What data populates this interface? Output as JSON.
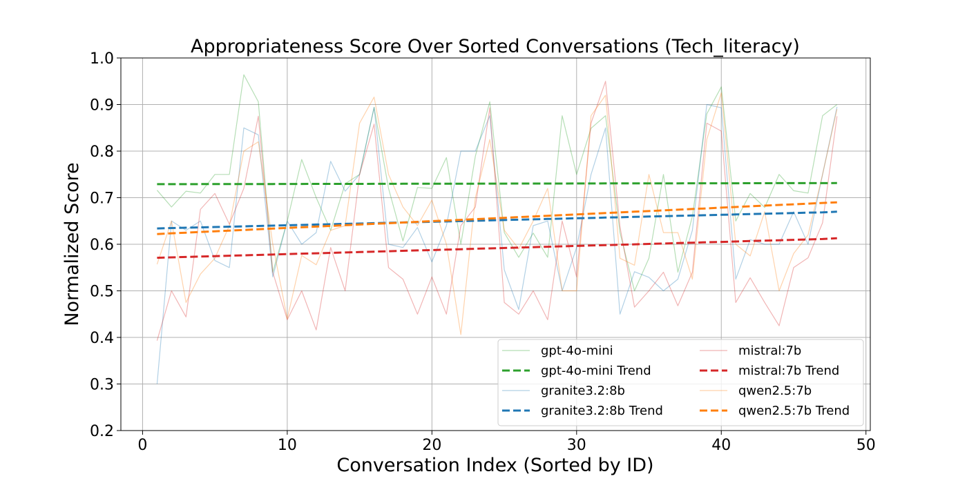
{
  "chart_data": {
    "type": "line",
    "title": "Appropriateness Score Over Sorted Conversations (Tech_literacy)",
    "xlabel": "Conversation Index (Sorted by ID)",
    "ylabel": "Normalized Score",
    "xlim": [
      -1.5,
      50.3
    ],
    "ylim": [
      0.2,
      1.0
    ],
    "xticks": [
      "0",
      "10",
      "20",
      "30",
      "40",
      "50"
    ],
    "yticks": [
      "0.2",
      "0.3",
      "0.4",
      "0.5",
      "0.6",
      "0.7",
      "0.8",
      "0.9",
      "1.0"
    ],
    "grid": true,
    "legend_position": "lower-right",
    "x": [
      1,
      2,
      3,
      4,
      5,
      6,
      7,
      8,
      9,
      10,
      11,
      12,
      13,
      14,
      15,
      16,
      17,
      18,
      19,
      20,
      21,
      22,
      23,
      24,
      25,
      26,
      27,
      28,
      29,
      30,
      31,
      32,
      33,
      34,
      35,
      36,
      37,
      38,
      39,
      40,
      41,
      42,
      43,
      44,
      45,
      46,
      47,
      48
    ],
    "series": [
      {
        "name": "gpt-4o-mini",
        "color": "#2ca02c",
        "style": "solid",
        "values": [
          0.716,
          0.68,
          0.714,
          0.71,
          0.75,
          0.75,
          0.964,
          0.906,
          0.54,
          0.65,
          0.782,
          0.7,
          0.63,
          0.73,
          0.75,
          0.894,
          0.72,
          0.607,
          0.722,
          0.72,
          0.786,
          0.6,
          0.789,
          0.906,
          0.625,
          0.572,
          0.624,
          0.572,
          0.876,
          0.75,
          0.849,
          0.876,
          0.625,
          0.5,
          0.57,
          0.75,
          0.54,
          0.66,
          0.88,
          0.938,
          0.65,
          0.709,
          0.679,
          0.75,
          0.715,
          0.71,
          0.876,
          0.9
        ]
      },
      {
        "name": "gpt-4o-mini Trend",
        "color": "#2ca02c",
        "style": "dashed",
        "values": [
          0.729,
          0.7291,
          0.7291,
          0.7292,
          0.7292,
          0.7293,
          0.7293,
          0.7294,
          0.7294,
          0.7295,
          0.7295,
          0.7296,
          0.7296,
          0.7297,
          0.7297,
          0.7298,
          0.7298,
          0.7299,
          0.7299,
          0.73,
          0.73,
          0.7301,
          0.7301,
          0.7302,
          0.7302,
          0.7303,
          0.7303,
          0.7304,
          0.7304,
          0.7305,
          0.7305,
          0.7306,
          0.7306,
          0.7307,
          0.7307,
          0.7308,
          0.7308,
          0.7309,
          0.7309,
          0.731,
          0.731,
          0.7311,
          0.7311,
          0.7312,
          0.7312,
          0.7313,
          0.7313,
          0.7314
        ]
      },
      {
        "name": "granite3.2:8b",
        "color": "#1f77b4",
        "style": "solid",
        "values": [
          0.3,
          0.65,
          0.63,
          0.65,
          0.565,
          0.55,
          0.85,
          0.835,
          0.53,
          0.65,
          0.6,
          0.625,
          0.778,
          0.714,
          0.75,
          0.894,
          0.6,
          0.593,
          0.636,
          0.562,
          0.64,
          0.8,
          0.8,
          0.876,
          0.545,
          0.46,
          0.64,
          0.65,
          0.5,
          0.593,
          0.75,
          0.85,
          0.45,
          0.541,
          0.529,
          0.5,
          0.525,
          0.63,
          0.9,
          0.893,
          0.525,
          0.61,
          0.6,
          0.6,
          0.67,
          0.6,
          0.75,
          0.895
        ]
      },
      {
        "name": "granite3.2:8b Trend",
        "color": "#1f77b4",
        "style": "dashed",
        "values": [
          0.634,
          0.6348,
          0.6355,
          0.6363,
          0.637,
          0.6378,
          0.6385,
          0.6393,
          0.64,
          0.6408,
          0.6415,
          0.6423,
          0.643,
          0.6438,
          0.6445,
          0.6453,
          0.646,
          0.6468,
          0.6475,
          0.6483,
          0.649,
          0.6498,
          0.6505,
          0.6513,
          0.652,
          0.6528,
          0.6535,
          0.6543,
          0.655,
          0.6558,
          0.6565,
          0.6573,
          0.658,
          0.6588,
          0.6595,
          0.6603,
          0.661,
          0.6618,
          0.6625,
          0.6633,
          0.664,
          0.6648,
          0.6655,
          0.6663,
          0.667,
          0.6678,
          0.6685,
          0.67
        ]
      },
      {
        "name": "mistral:7b",
        "color": "#d62728",
        "style": "solid",
        "values": [
          0.393,
          0.5,
          0.444,
          0.675,
          0.709,
          0.643,
          0.72,
          0.875,
          0.54,
          0.438,
          0.5,
          0.416,
          0.593,
          0.5,
          0.75,
          0.858,
          0.55,
          0.525,
          0.45,
          0.53,
          0.45,
          0.64,
          0.68,
          0.893,
          0.475,
          0.45,
          0.5,
          0.438,
          0.65,
          0.53,
          0.86,
          0.95,
          0.638,
          0.465,
          0.5,
          0.54,
          0.468,
          0.54,
          0.86,
          0.843,
          0.475,
          0.528,
          0.475,
          0.425,
          0.55,
          0.571,
          0.646,
          0.875
        ]
      },
      {
        "name": "mistral:7b Trend",
        "color": "#d62728",
        "style": "dashed",
        "values": [
          0.571,
          0.5719,
          0.5728,
          0.5736,
          0.5745,
          0.5754,
          0.5763,
          0.5771,
          0.578,
          0.5789,
          0.5798,
          0.5806,
          0.5815,
          0.5824,
          0.5833,
          0.5841,
          0.585,
          0.5859,
          0.5868,
          0.5876,
          0.5885,
          0.5894,
          0.5903,
          0.5911,
          0.592,
          0.5929,
          0.5938,
          0.5946,
          0.5955,
          0.5964,
          0.5973,
          0.5981,
          0.599,
          0.5999,
          0.6008,
          0.6016,
          0.6025,
          0.6034,
          0.6043,
          0.6051,
          0.606,
          0.6069,
          0.6078,
          0.6086,
          0.6095,
          0.6104,
          0.6113,
          0.613
        ]
      },
      {
        "name": "qwen2.5:7b",
        "color": "#ff7f0e",
        "style": "solid",
        "values": [
          0.557,
          0.65,
          0.475,
          0.536,
          0.57,
          0.64,
          0.8,
          0.82,
          0.6,
          0.44,
          0.576,
          0.556,
          0.63,
          0.64,
          0.86,
          0.916,
          0.75,
          0.68,
          0.64,
          0.695,
          0.6,
          0.406,
          0.7,
          0.825,
          0.63,
          0.59,
          0.65,
          0.72,
          0.5,
          0.5,
          0.876,
          0.92,
          0.57,
          0.555,
          0.75,
          0.625,
          0.625,
          0.525,
          0.825,
          0.925,
          0.6,
          0.575,
          0.67,
          0.5,
          0.58,
          0.62,
          0.75,
          0.89
        ]
      },
      {
        "name": "qwen2.5:7b Trend",
        "color": "#ff7f0e",
        "style": "dashed",
        "values": [
          0.622,
          0.6235,
          0.6249,
          0.6264,
          0.6278,
          0.6293,
          0.6307,
          0.6322,
          0.6336,
          0.6351,
          0.6365,
          0.638,
          0.6394,
          0.6409,
          0.6423,
          0.6438,
          0.6452,
          0.6467,
          0.6481,
          0.6496,
          0.651,
          0.6525,
          0.6539,
          0.6554,
          0.6568,
          0.6583,
          0.6597,
          0.6612,
          0.6626,
          0.6641,
          0.6655,
          0.667,
          0.6684,
          0.6699,
          0.6713,
          0.6728,
          0.6742,
          0.6757,
          0.6771,
          0.6786,
          0.68,
          0.6815,
          0.6829,
          0.6844,
          0.6858,
          0.6873,
          0.6887,
          0.69
        ]
      }
    ],
    "legend": [
      [
        "gpt-4o-mini",
        "mistral:7b"
      ],
      [
        "gpt-4o-mini Trend",
        "mistral:7b Trend"
      ],
      [
        "granite3.2:8b",
        "qwen2.5:7b"
      ],
      [
        "granite3.2:8b Trend",
        "qwen2.5:7b Trend"
      ]
    ]
  }
}
